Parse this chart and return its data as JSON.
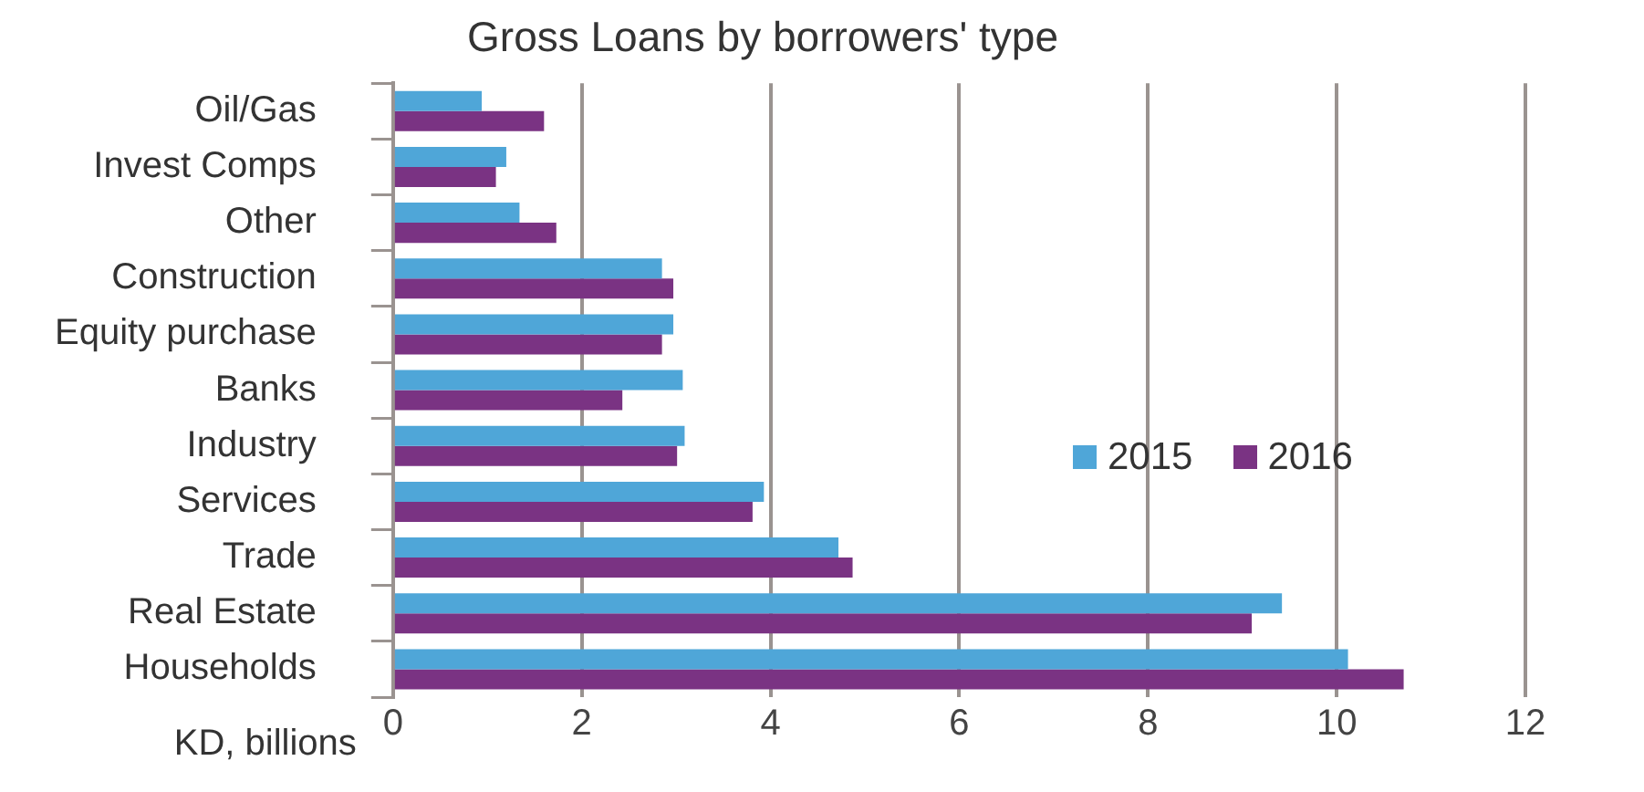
{
  "chart_data": {
    "type": "bar",
    "orientation": "horizontal",
    "title": "Gross Loans by borrowers' type",
    "xlabel": "KD, billions",
    "categories": [
      "Oil/Gas",
      "Invest Comps",
      "Other",
      "Construction",
      "Equity purchase",
      "Banks",
      "Industry",
      "Services",
      "Trade",
      "Real Estate",
      "Households"
    ],
    "series": [
      {
        "name": "2015",
        "color": "#4fa6d8",
        "values": [
          0.94,
          1.2,
          1.34,
          2.85,
          2.97,
          3.07,
          3.09,
          3.93,
          4.72,
          9.42,
          10.12
        ]
      },
      {
        "name": "2016",
        "color": "#7a3383",
        "values": [
          1.6,
          1.09,
          1.73,
          2.97,
          2.85,
          2.43,
          3.01,
          3.81,
          4.87,
          9.1,
          10.71
        ]
      }
    ],
    "xlim": [
      0,
      12
    ],
    "xticks": [
      0,
      2,
      4,
      6,
      8,
      10,
      12
    ],
    "grid": "x",
    "legend": "right"
  }
}
